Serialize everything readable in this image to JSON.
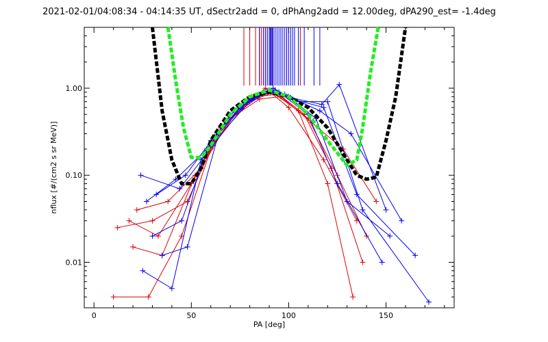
{
  "chart_data": {
    "type": "line",
    "title": "2021-02-01/04:08:34 - 04:14:35 UT, dSectr2add = 0, dPhAng2add = 12.00deg, dPA290_est=  -1.4deg",
    "xlabel": "PA [deg]",
    "ylabel": "nflux [#/(cm2 s sr MeV)]",
    "xlim": [
      -5,
      185
    ],
    "ylim": [
      0.003,
      5.0
    ],
    "yscale": "log",
    "xticks": [
      0,
      50,
      100,
      150
    ],
    "xtick_labels": [
      "0",
      "50",
      "100",
      "150"
    ],
    "yticks": [
      0.01,
      0.1,
      1.0
    ],
    "ytick_labels": [
      "0.01",
      "0.10",
      "1.00"
    ],
    "grid": false,
    "legend": "none",
    "colors": {
      "red": "#dd0000",
      "blue": "#0000ee",
      "black": "#000000",
      "green": "#22ee22"
    },
    "series": [
      {
        "color": "red",
        "style": "line+plus",
        "x": [
          10,
          28,
          45,
          60,
          75,
          90,
          105,
          120,
          133
        ],
        "y": [
          0.004,
          0.004,
          0.02,
          0.2,
          0.6,
          0.95,
          0.55,
          0.08,
          0.004
        ]
      },
      {
        "color": "red",
        "style": "line+plus",
        "x": [
          12,
          30,
          48,
          62,
          80,
          92,
          110,
          125,
          140
        ],
        "y": [
          0.025,
          0.03,
          0.05,
          0.25,
          0.7,
          0.9,
          0.45,
          0.1,
          0.02
        ]
      },
      {
        "color": "red",
        "style": "line+plus",
        "x": [
          18,
          33,
          50,
          65,
          78,
          88,
          100,
          118,
          135
        ],
        "y": [
          0.03,
          0.02,
          0.08,
          0.35,
          0.65,
          1.0,
          0.6,
          0.15,
          0.03
        ]
      },
      {
        "color": "red",
        "style": "line+plus",
        "x": [
          20,
          35,
          52,
          68,
          82,
          95,
          108,
          122,
          138
        ],
        "y": [
          0.015,
          0.012,
          0.1,
          0.4,
          0.8,
          0.85,
          0.5,
          0.12,
          0.01
        ]
      },
      {
        "color": "red",
        "style": "line+plus",
        "x": [
          22,
          38,
          55,
          70,
          85,
          96,
          112,
          128,
          145
        ],
        "y": [
          0.04,
          0.05,
          0.12,
          0.45,
          0.75,
          0.8,
          0.4,
          0.2,
          0.05
        ]
      },
      {
        "color": "blue",
        "style": "line+plus",
        "x": [
          25,
          40,
          55,
          70,
          85,
          95,
          110,
          125,
          148
        ],
        "y": [
          0.008,
          0.005,
          0.15,
          0.5,
          0.85,
          0.9,
          0.5,
          0.08,
          0.01
        ]
      },
      {
        "color": "blue",
        "style": "line+plus",
        "x": [
          27,
          42,
          58,
          72,
          88,
          98,
          114,
          130,
          152
        ],
        "y": [
          0.05,
          0.09,
          0.2,
          0.55,
          0.9,
          0.85,
          0.45,
          0.05,
          0.02
        ]
      },
      {
        "color": "blue",
        "style": "line+plus",
        "x": [
          30,
          45,
          60,
          75,
          90,
          100,
          116,
          132,
          158
        ],
        "y": [
          0.02,
          0.03,
          0.25,
          0.6,
          0.95,
          0.8,
          0.55,
          0.3,
          0.03
        ]
      },
      {
        "color": "blue",
        "style": "line+plus",
        "x": [
          32,
          47,
          62,
          78,
          92,
          102,
          118,
          135,
          165
        ],
        "y": [
          0.06,
          0.1,
          0.28,
          0.7,
          1.0,
          0.75,
          0.6,
          0.06,
          0.012
        ]
      },
      {
        "color": "blue",
        "style": "line+plus",
        "x": [
          35,
          48,
          64,
          80,
          93,
          104,
          120,
          138,
          172
        ],
        "y": [
          0.012,
          0.015,
          0.3,
          0.75,
          0.95,
          0.7,
          0.7,
          0.04,
          0.0035
        ]
      },
      {
        "color": "blue",
        "style": "line+plus",
        "x": [
          24,
          44,
          61,
          76,
          89,
          101,
          117,
          126,
          150
        ],
        "y": [
          0.1,
          0.07,
          0.22,
          0.58,
          0.92,
          0.78,
          0.65,
          1.1,
          0.04
        ]
      }
    ],
    "model_curves": [
      {
        "color": "black",
        "style": "dashed-thick",
        "x": [
          30,
          35,
          40,
          45,
          50,
          55,
          60,
          70,
          80,
          90,
          100,
          110,
          120,
          130,
          135,
          140,
          145,
          150,
          155,
          160
        ],
        "y": [
          5.0,
          0.55,
          0.15,
          0.08,
          0.08,
          0.12,
          0.25,
          0.55,
          0.8,
          0.9,
          0.8,
          0.6,
          0.35,
          0.15,
          0.1,
          0.09,
          0.095,
          0.25,
          0.8,
          5.0
        ]
      },
      {
        "color": "green",
        "style": "dashed-thick",
        "x": [
          38,
          42,
          46,
          50,
          55,
          60,
          70,
          80,
          90,
          100,
          110,
          120,
          130,
          135,
          138,
          142,
          146
        ],
        "y": [
          5.0,
          1.2,
          0.35,
          0.16,
          0.16,
          0.22,
          0.5,
          0.8,
          0.95,
          0.8,
          0.5,
          0.25,
          0.13,
          0.15,
          0.35,
          1.5,
          5.0
        ]
      }
    ],
    "top_markers": [
      {
        "color": "red",
        "x": [
          77,
          80,
          83,
          85,
          86,
          87,
          88,
          89,
          90,
          91,
          92,
          96,
          99,
          106
        ]
      },
      {
        "color": "blue",
        "x": [
          85,
          87,
          88,
          89,
          90,
          90.5,
          91,
          91.5,
          92,
          93,
          94,
          95,
          96,
          97,
          98,
          99,
          100,
          101,
          102,
          103,
          105,
          108,
          113,
          116
        ]
      }
    ]
  }
}
